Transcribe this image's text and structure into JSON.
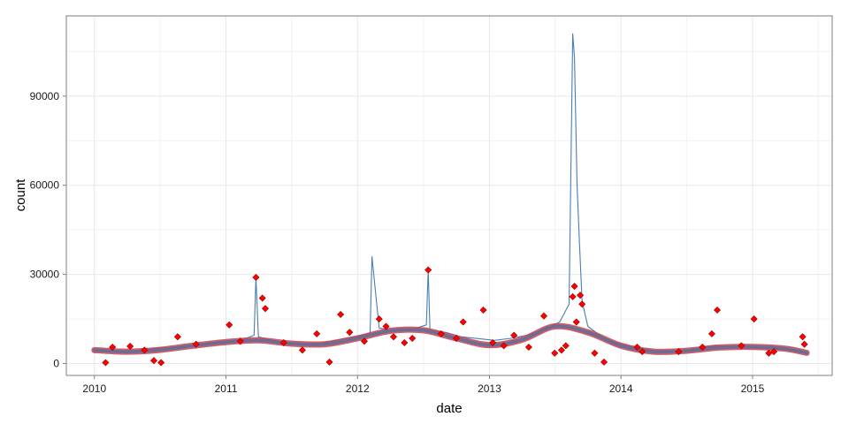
{
  "chart_data": {
    "type": "line",
    "title": "",
    "xlabel": "date",
    "ylabel": "count",
    "xlim": [
      "2009-10-15",
      "2015-08-10"
    ],
    "ylim": [
      -4000,
      117000
    ],
    "x_ticks": [
      "2010",
      "2011",
      "2012",
      "2013",
      "2014",
      "2015"
    ],
    "y_ticks": [
      "0",
      "30000",
      "60000",
      "90000"
    ],
    "grid": true,
    "legend": "none",
    "colors": {
      "line": "#4a7db5",
      "smooth": "#5b6fa0",
      "smooth_band": "#c4434c",
      "points": "#ff0000",
      "point_edge": "#9b0000",
      "grid": "#e8e8e8",
      "border": "#7f7f7f"
    },
    "series": [
      {
        "type": "line",
        "x": [
          "2010-01-01",
          "2010-02-15",
          "2010-04-01",
          "2010-05-15",
          "2010-07-01",
          "2010-08-15",
          "2010-10-01",
          "2010-11-15",
          "2011-01-01",
          "2011-02-15",
          "2011-03-20",
          "2011-03-25",
          "2011-04-01",
          "2011-05-15",
          "2011-07-01",
          "2011-08-15",
          "2011-10-01",
          "2011-11-15",
          "2012-01-01",
          "2012-02-05",
          "2012-02-10",
          "2012-03-01",
          "2012-04-15",
          "2012-06-01",
          "2012-07-10",
          "2012-07-15",
          "2012-07-20",
          "2012-09-01",
          "2012-10-15",
          "2012-12-01",
          "2013-01-15",
          "2013-03-01",
          "2013-04-15",
          "2013-06-01",
          "2013-07-15",
          "2013-08-10",
          "2013-08-20",
          "2013-08-25",
          "2013-09-01",
          "2013-09-08",
          "2013-09-15",
          "2013-10-01",
          "2013-11-15",
          "2014-01-01",
          "2014-02-15",
          "2014-04-01",
          "2014-05-15",
          "2014-07-01",
          "2014-08-15",
          "2014-09-20",
          "2014-10-15",
          "2014-12-01",
          "2015-01-10",
          "2015-02-15",
          "2015-04-01",
          "2015-05-31"
        ],
        "y": [
          4000,
          4200,
          3800,
          4500,
          5200,
          5500,
          6200,
          6800,
          7200,
          8000,
          9500,
          29000,
          9000,
          7600,
          6800,
          6200,
          7000,
          8200,
          9200,
          10200,
          36000,
          12000,
          10800,
          11500,
          13000,
          31500,
          11000,
          10500,
          9000,
          8400,
          7800,
          8500,
          9500,
          11500,
          14000,
          20000,
          111000,
          103000,
          60000,
          40000,
          21000,
          12500,
          8500,
          6500,
          5200,
          4400,
          4000,
          4600,
          5400,
          6000,
          5700,
          5400,
          5200,
          5000,
          4600,
          3500
        ]
      },
      {
        "type": "smooth",
        "x": [
          "2010-01-01",
          "2010-04-01",
          "2010-07-01",
          "2010-10-01",
          "2011-01-01",
          "2011-04-01",
          "2011-07-01",
          "2011-10-01",
          "2012-01-01",
          "2012-04-01",
          "2012-07-01",
          "2012-10-01",
          "2013-01-01",
          "2013-04-01",
          "2013-07-01",
          "2013-10-01",
          "2014-01-01",
          "2014-04-01",
          "2014-07-01",
          "2014-10-01",
          "2015-01-01",
          "2015-04-01",
          "2015-05-31"
        ],
        "y": [
          4500,
          4000,
          4600,
          6000,
          7200,
          7800,
          6700,
          6500,
          8500,
          11000,
          11200,
          8500,
          6200,
          8000,
          12500,
          10500,
          6000,
          4000,
          4300,
          5400,
          5600,
          5000,
          3600
        ]
      },
      {
        "type": "points",
        "x": [
          "2010-02-01",
          "2010-02-20",
          "2010-04-10",
          "2010-05-20",
          "2010-06-15",
          "2010-07-05",
          "2010-08-20",
          "2010-10-10",
          "2011-01-10",
          "2011-02-10",
          "2011-03-25",
          "2011-04-12",
          "2011-04-20",
          "2011-06-10",
          "2011-08-01",
          "2011-09-10",
          "2011-10-15",
          "2011-11-15",
          "2011-12-10",
          "2012-01-20",
          "2012-03-01",
          "2012-03-20",
          "2012-04-10",
          "2012-05-10",
          "2012-06-01",
          "2012-07-15",
          "2012-08-20",
          "2012-10-01",
          "2012-10-20",
          "2012-12-15",
          "2013-01-10",
          "2013-02-10",
          "2013-03-10",
          "2013-04-20",
          "2013-06-01",
          "2013-07-01",
          "2013-07-20",
          "2013-08-01",
          "2013-08-20",
          "2013-08-25",
          "2013-08-30",
          "2013-09-10",
          "2013-09-15",
          "2013-10-20",
          "2013-11-15",
          "2014-02-15",
          "2014-03-01",
          "2014-06-10",
          "2014-08-15",
          "2014-09-10",
          "2014-09-25",
          "2014-12-01",
          "2015-01-05",
          "2015-02-15",
          "2015-03-01",
          "2015-05-20",
          "2015-05-25"
        ],
        "y": [
          300,
          5500,
          5800,
          4500,
          1000,
          300,
          9000,
          6500,
          13000,
          7500,
          29000,
          22000,
          18500,
          7000,
          4500,
          10000,
          500,
          16500,
          10500,
          7500,
          15000,
          12500,
          9000,
          7000,
          8500,
          31500,
          10000,
          8500,
          14000,
          18000,
          7000,
          6000,
          9500,
          5500,
          16000,
          3500,
          4500,
          6000,
          22500,
          26000,
          14000,
          23000,
          20000,
          3500,
          500,
          5500,
          4000,
          4000,
          5500,
          10000,
          18000,
          6000,
          15000,
          3500,
          4000,
          9000,
          6500
        ]
      }
    ]
  }
}
